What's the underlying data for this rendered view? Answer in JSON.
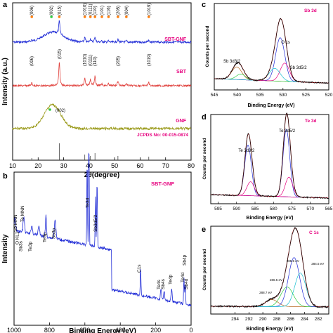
{
  "chart_data": [
    {
      "panel": "a",
      "type": "line",
      "xlabel": "2θ(degree)",
      "ylabel": "Intensity (a.u.)",
      "xticks": [
        "10",
        "20",
        "30",
        "40",
        "50",
        "60",
        "70",
        "80"
      ],
      "xlim": [
        10,
        80
      ],
      "series": [
        {
          "name": "SBT-GNF",
          "color": "#1f2bd6"
        },
        {
          "name": "SBT",
          "color": "#e0403c"
        },
        {
          "name": "GNF",
          "color": "#9a9a1a"
        }
      ],
      "peak_labels_sbtgnf": [
        {
          "label": "(006)",
          "x": 17.5
        },
        {
          "label": "(002)",
          "x": 25.2
        },
        {
          "label": "(015)",
          "x": 28.3
        },
        {
          "label": "(1010)",
          "x": 38.3
        },
        {
          "label": "(0111)",
          "x": 40.5
        },
        {
          "label": "(110)",
          "x": 42.3
        },
        {
          "label": "(101)",
          "x": 45.0
        },
        {
          "label": "(116)",
          "x": 47.6
        },
        {
          "label": "(205)",
          "x": 51.3
        },
        {
          "label": "(004)",
          "x": 54.6
        },
        {
          "label": "(1019)",
          "x": 63.4
        }
      ],
      "peak_labels_sbt": [
        {
          "label": "(006)",
          "x": 17.5
        },
        {
          "label": "(015)",
          "x": 28.3
        },
        {
          "label": "(1010)",
          "x": 38.3
        },
        {
          "label": "(0111)",
          "x": 40.5
        },
        {
          "label": "(110)",
          "x": 42.3
        },
        {
          "label": "(205)",
          "x": 51.3
        },
        {
          "label": "(1019)",
          "x": 63.4
        }
      ],
      "peak_label_gnf": {
        "label": "(002)",
        "x": 26.0
      },
      "reference": {
        "label": "JCPDS No: 00-015-0874",
        "sticks": [
          28.3,
          38.3,
          40.5,
          42.3,
          51.3,
          63.4,
          17.5
        ]
      }
    },
    {
      "panel": "b",
      "type": "line",
      "title": "SBT-GNF",
      "xlabel": "Binding Energy (eV)",
      "ylabel": "Intensity",
      "xticks": [
        "1000",
        "800",
        "600",
        "400",
        "200",
        "0"
      ],
      "xlim": [
        1000,
        0
      ],
      "annotations": [
        "Sb MNN",
        "Te MNN",
        "O KL1",
        "Sb3s",
        "Te3p",
        "Te3p",
        "Sb3p",
        "Te3d",
        "Sb3d5/2",
        "C1s",
        "Te4s",
        "Sb4s",
        "Te4p",
        "Te4d",
        "Sb4p",
        "Sb4d"
      ]
    },
    {
      "panel": "c",
      "type": "line",
      "title": "Sb 3d",
      "xlabel": "Binding Energy (eV)",
      "ylabel": "Counts per second",
      "xticks": [
        "545",
        "540",
        "535",
        "530",
        "525",
        "520"
      ],
      "xlim": [
        545,
        520
      ],
      "annotations": [
        "Sb 3d3/2",
        "O 1s",
        "Sb 3d5/2"
      ]
    },
    {
      "panel": "d",
      "type": "line",
      "title": "Te 3d",
      "xlabel": "Binding Energy (eV)",
      "ylabel": "Counts per second",
      "xticks": [
        "595",
        "590",
        "585",
        "580",
        "575",
        "570",
        "565"
      ],
      "xlim": [
        595,
        565
      ],
      "annotations": [
        "Te 3d3/2",
        "Te 3d5/2"
      ]
    },
    {
      "panel": "e",
      "type": "line",
      "title": "C 1s",
      "xlabel": "Binding Energy (eV)",
      "ylabel": "Counts per second",
      "xticks": [
        "297",
        "296",
        "295",
        "294",
        "293",
        "292",
        "291",
        "290",
        "289",
        "288",
        "287",
        "286",
        "285",
        "284",
        "283",
        "282",
        "281"
      ],
      "xticks_shown": [
        "294",
        "292",
        "290",
        "288",
        "286",
        "284",
        "282"
      ],
      "xlim": [
        297,
        281
      ],
      "annotations": [
        "288.7 eV",
        "286.5 eV",
        "285.5 eV",
        "284.5 eV"
      ]
    }
  ]
}
